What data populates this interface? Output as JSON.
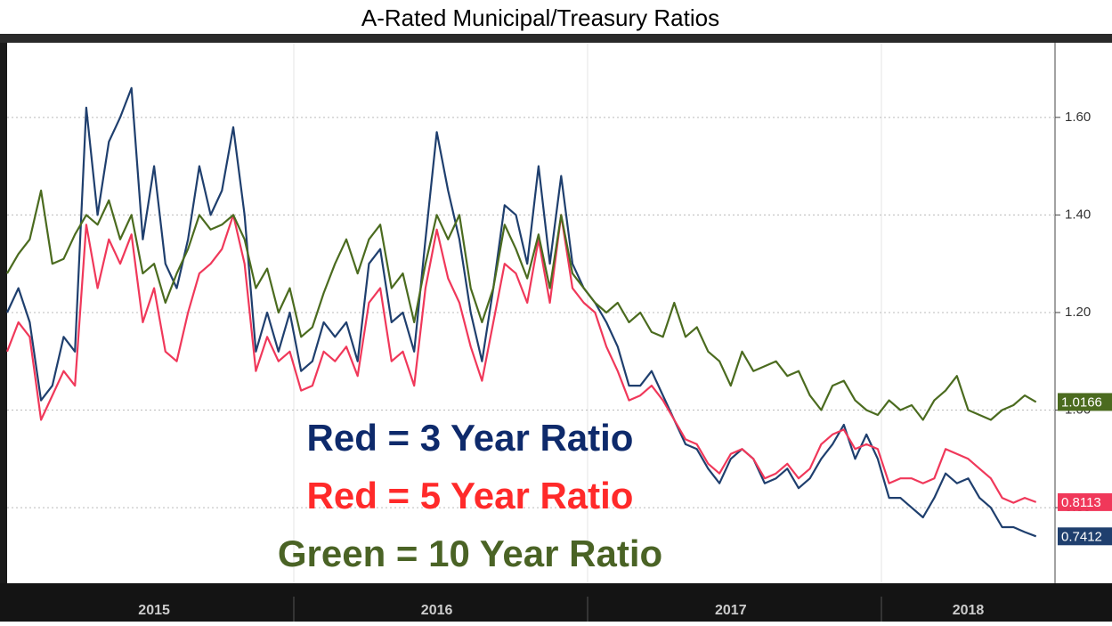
{
  "chart_data": {
    "type": "line",
    "title": "A-Rated Municipal/Treasury Ratios",
    "categories": [
      null,
      null,
      null,
      null,
      null,
      null,
      null,
      null,
      null,
      null,
      null,
      null,
      null,
      "2015",
      null,
      null,
      null,
      null,
      null,
      null,
      null,
      null,
      null,
      null,
      null,
      null,
      null,
      null,
      null,
      null,
      null,
      null,
      null,
      null,
      null,
      null,
      null,
      null,
      "2016",
      null,
      null,
      null,
      null,
      null,
      null,
      null,
      null,
      null,
      null,
      null,
      null,
      null,
      null,
      null,
      null,
      null,
      null,
      null,
      null,
      null,
      null,
      null,
      null,
      null,
      "2017",
      null,
      null,
      null,
      null,
      null,
      null,
      null,
      null,
      null,
      null,
      null,
      null,
      null,
      null,
      null,
      null,
      null,
      null,
      null,
      null,
      "2018",
      null,
      null,
      null,
      null,
      null,
      null
    ],
    "series": [
      {
        "name": "Red = 3 Year Ratio",
        "color": "#1f3f6e",
        "label_color": "#0e2a6b",
        "values": [
          1.2,
          1.25,
          1.18,
          1.02,
          1.05,
          1.15,
          1.12,
          1.62,
          1.4,
          1.55,
          1.6,
          1.66,
          1.35,
          1.5,
          1.3,
          1.25,
          1.35,
          1.5,
          1.4,
          1.45,
          1.58,
          1.4,
          1.12,
          1.2,
          1.12,
          1.2,
          1.08,
          1.1,
          1.18,
          1.15,
          1.18,
          1.1,
          1.3,
          1.33,
          1.18,
          1.2,
          1.12,
          1.35,
          1.57,
          1.45,
          1.35,
          1.2,
          1.1,
          1.25,
          1.42,
          1.4,
          1.3,
          1.5,
          1.3,
          1.48,
          1.3,
          1.25,
          1.22,
          1.18,
          1.13,
          1.05,
          1.05,
          1.08,
          1.03,
          0.98,
          0.93,
          0.92,
          0.88,
          0.85,
          0.9,
          0.92,
          0.9,
          0.85,
          0.86,
          0.88,
          0.84,
          0.86,
          0.9,
          0.93,
          0.97,
          0.9,
          0.95,
          0.9,
          0.82,
          0.82,
          0.8,
          0.78,
          0.82,
          0.87,
          0.85,
          0.86,
          0.82,
          0.8,
          0.76,
          0.76,
          0.75,
          0.7412
        ]
      },
      {
        "name": "Red = 5 Year Ratio",
        "color": "#f0385a",
        "label_color": "#ff2a2a",
        "values": [
          1.12,
          1.18,
          1.15,
          0.98,
          1.03,
          1.08,
          1.05,
          1.38,
          1.25,
          1.35,
          1.3,
          1.36,
          1.18,
          1.25,
          1.12,
          1.1,
          1.2,
          1.28,
          1.3,
          1.33,
          1.4,
          1.3,
          1.08,
          1.15,
          1.1,
          1.12,
          1.04,
          1.05,
          1.12,
          1.1,
          1.13,
          1.07,
          1.22,
          1.25,
          1.1,
          1.12,
          1.05,
          1.25,
          1.37,
          1.27,
          1.22,
          1.13,
          1.06,
          1.18,
          1.3,
          1.28,
          1.22,
          1.35,
          1.22,
          1.4,
          1.25,
          1.22,
          1.2,
          1.13,
          1.08,
          1.02,
          1.03,
          1.05,
          1.02,
          0.98,
          0.94,
          0.93,
          0.89,
          0.87,
          0.91,
          0.92,
          0.9,
          0.86,
          0.87,
          0.89,
          0.86,
          0.88,
          0.93,
          0.95,
          0.96,
          0.92,
          0.93,
          0.92,
          0.85,
          0.86,
          0.86,
          0.85,
          0.86,
          0.92,
          0.91,
          0.9,
          0.88,
          0.86,
          0.82,
          0.81,
          0.82,
          0.8113
        ]
      },
      {
        "name": "Green = 10 Year Ratio",
        "color": "#4b6b1f",
        "label_color": "#4a6325",
        "values": [
          1.28,
          1.32,
          1.35,
          1.45,
          1.3,
          1.31,
          1.36,
          1.4,
          1.38,
          1.43,
          1.35,
          1.4,
          1.28,
          1.3,
          1.22,
          1.28,
          1.33,
          1.4,
          1.37,
          1.38,
          1.4,
          1.35,
          1.25,
          1.29,
          1.2,
          1.25,
          1.15,
          1.17,
          1.24,
          1.3,
          1.35,
          1.28,
          1.35,
          1.38,
          1.25,
          1.28,
          1.18,
          1.3,
          1.4,
          1.35,
          1.4,
          1.25,
          1.18,
          1.25,
          1.38,
          1.33,
          1.27,
          1.36,
          1.25,
          1.4,
          1.28,
          1.25,
          1.22,
          1.2,
          1.22,
          1.18,
          1.2,
          1.16,
          1.15,
          1.22,
          1.15,
          1.17,
          1.12,
          1.1,
          1.05,
          1.12,
          1.08,
          1.09,
          1.1,
          1.07,
          1.08,
          1.03,
          1.0,
          1.05,
          1.06,
          1.02,
          1.0,
          0.99,
          1.02,
          1.0,
          1.01,
          0.98,
          1.02,
          1.04,
          1.07,
          1.0,
          0.99,
          0.98,
          1.0,
          1.01,
          1.03,
          1.0166
        ]
      }
    ],
    "ylim": [
      0.645,
      1.753
    ],
    "yticks": [
      {
        "value": 0.8,
        "label": "0.80"
      },
      {
        "value": 1.0,
        "label": "1.00"
      },
      {
        "value": 1.2,
        "label": "1.20"
      },
      {
        "value": 1.4,
        "label": "1.40"
      },
      {
        "value": 1.6,
        "label": "1.60"
      }
    ],
    "grid": true
  }
}
